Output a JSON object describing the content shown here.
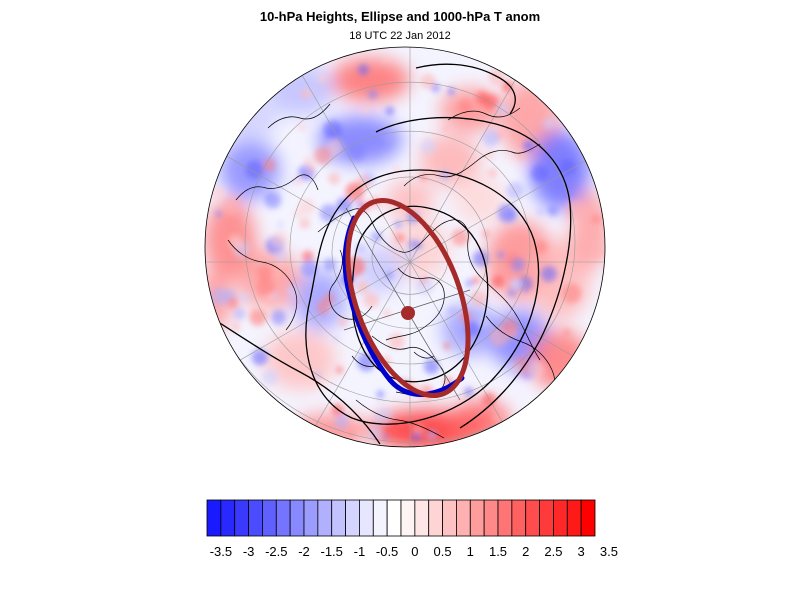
{
  "title": "10-hPa Heights, Ellipse and 1000-hPa T anom",
  "subtitle": "18 UTC 22 Jan 2012",
  "colorbar": {
    "labels": [
      "-3.5",
      "-3",
      "-2.5",
      "-2",
      "-1.5",
      "-1",
      "-0.5",
      "0",
      "0.5",
      "1",
      "1.5",
      "2",
      "2.5",
      "3",
      "3.5"
    ],
    "colors": [
      "#1a1aff",
      "#2828ff",
      "#3a3aff",
      "#4c4cff",
      "#6060ff",
      "#7474ff",
      "#8888ff",
      "#9c9cff",
      "#b0b0ff",
      "#c2c2ff",
      "#d4d4ff",
      "#e6e6ff",
      "#f4f4ff",
      "#ffffff",
      "#fff4f4",
      "#ffe6e6",
      "#ffd4d4",
      "#ffc2c2",
      "#ffb0b0",
      "#ff9c9c",
      "#ff8888",
      "#ff7474",
      "#ff6060",
      "#ff4c4c",
      "#ff3a3a",
      "#ff2828",
      "#ff1a1a",
      "#ff0000"
    ]
  },
  "styles": {
    "ellipse_color": "#a52a2a",
    "vortex_edge_color": "#0000cc",
    "contour_color": "#000000"
  }
}
